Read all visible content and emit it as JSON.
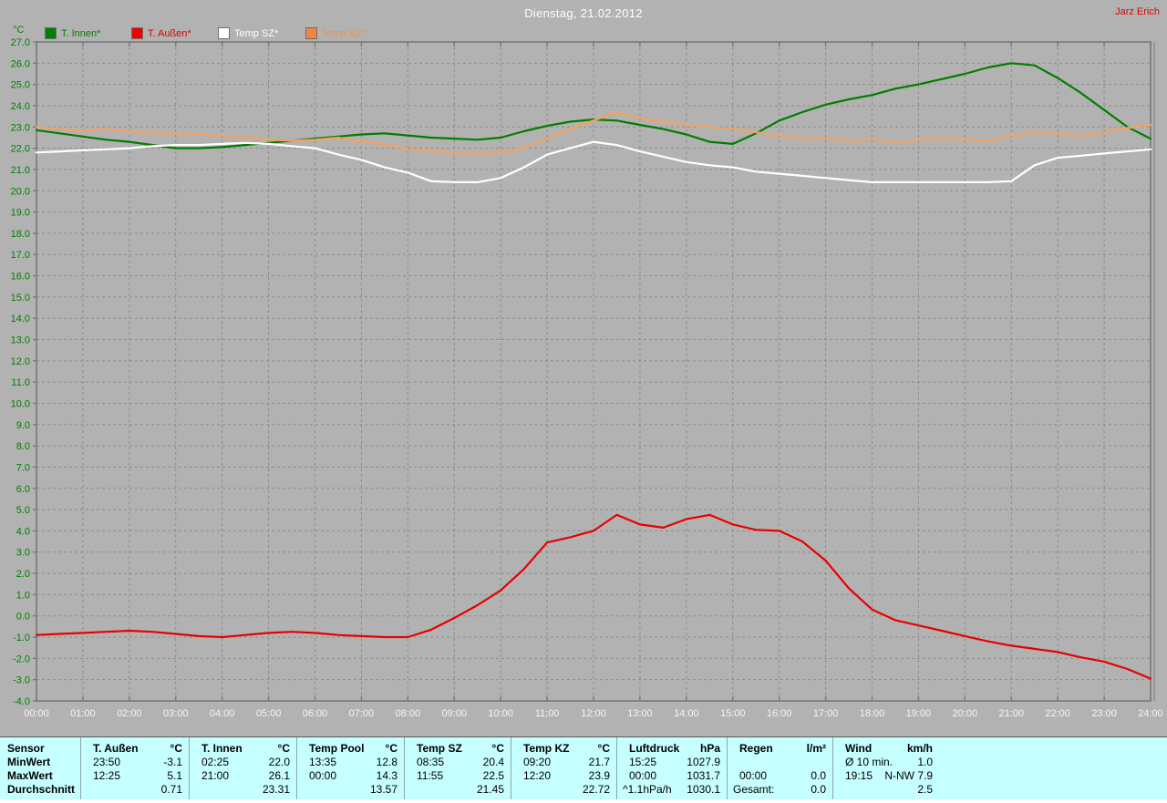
{
  "header": {
    "title": "Dienstag, 21.02.2012",
    "author": "Jarz Erich"
  },
  "chart": {
    "unit_label": "°C",
    "legend": [
      {
        "label": "T. Innen*",
        "color": "#008000",
        "text_color": "#008000"
      },
      {
        "label": "T. Außen*",
        "color": "#f00000",
        "text_color": "#e00000"
      },
      {
        "label": "Temp SZ*",
        "color": "#ffffff",
        "text_color": "#ffffff"
      },
      {
        "label": "Temp KZ*",
        "color": "#f08442",
        "text_color": "#f09050"
      }
    ],
    "colors": {
      "background": "#b2b2b2",
      "grid": "#8d8d8d",
      "frame": "#787878",
      "y_label": "#008000",
      "x_label": "#f5f5f5"
    }
  },
  "chart_data": {
    "type": "line",
    "title": "Dienstag, 21.02.2012",
    "xlabel": "",
    "ylabel": "°C",
    "ylim": [
      -4,
      27
    ],
    "y_tick_step": 1,
    "grid": true,
    "legend_position": "top-left",
    "x_ticks": [
      "00:00",
      "01:00",
      "02:00",
      "03:00",
      "04:00",
      "05:00",
      "06:00",
      "07:00",
      "08:00",
      "09:00",
      "10:00",
      "11:00",
      "12:00",
      "13:00",
      "14:00",
      "15:00",
      "16:00",
      "17:00",
      "18:00",
      "19:00",
      "20:00",
      "21:00",
      "22:00",
      "23:00",
      "24:00"
    ],
    "x_step_hours": 0.5,
    "series": [
      {
        "name": "T. Innen*",
        "color": "#007d00",
        "values": [
          22.85,
          22.7,
          22.55,
          22.4,
          22.3,
          22.15,
          22.0,
          22.0,
          22.05,
          22.15,
          22.25,
          22.35,
          22.45,
          22.55,
          22.65,
          22.7,
          22.6,
          22.5,
          22.45,
          22.4,
          22.5,
          22.8,
          23.05,
          23.25,
          23.35,
          23.3,
          23.1,
          22.9,
          22.65,
          22.3,
          22.2,
          22.7,
          23.3,
          23.7,
          24.05,
          24.3,
          24.5,
          24.8,
          25.0,
          25.25,
          25.5,
          25.8,
          26.0,
          25.9,
          25.3,
          24.6,
          23.8,
          23.0,
          22.45
        ]
      },
      {
        "name": "T. Außen*",
        "color": "#e80000",
        "values": [
          -0.9,
          -0.85,
          -0.8,
          -0.75,
          -0.7,
          -0.75,
          -0.85,
          -0.95,
          -1.0,
          -0.9,
          -0.8,
          -0.75,
          -0.8,
          -0.9,
          -0.95,
          -1.0,
          -1.0,
          -0.65,
          -0.1,
          0.5,
          1.2,
          2.2,
          3.45,
          3.7,
          4.0,
          4.75,
          4.3,
          4.15,
          4.55,
          4.75,
          4.3,
          4.05,
          4.0,
          3.5,
          2.6,
          1.3,
          0.3,
          -0.2,
          -0.45,
          -0.7,
          -0.95,
          -1.2,
          -1.4,
          -1.55,
          -1.7,
          -1.95,
          -2.15,
          -2.5,
          -2.95
        ]
      },
      {
        "name": "Temp SZ*",
        "color": "#ffffff",
        "values": [
          21.8,
          21.85,
          21.9,
          21.95,
          22.0,
          22.1,
          22.15,
          22.15,
          22.2,
          22.25,
          22.2,
          22.1,
          22.0,
          21.7,
          21.45,
          21.1,
          20.85,
          20.45,
          20.4,
          20.4,
          20.6,
          21.1,
          21.7,
          22.0,
          22.3,
          22.15,
          21.85,
          21.6,
          21.35,
          21.2,
          21.1,
          20.9,
          20.8,
          20.7,
          20.6,
          20.5,
          20.4,
          20.4,
          20.4,
          20.4,
          20.4,
          20.4,
          20.45,
          21.2,
          21.55,
          21.65,
          21.75,
          21.85,
          21.95
        ]
      },
      {
        "name": "Temp KZ*",
        "color": "#f2a263",
        "values": [
          23.0,
          22.9,
          22.8,
          22.9,
          22.8,
          22.7,
          22.7,
          22.65,
          22.6,
          22.5,
          22.4,
          22.35,
          22.4,
          22.5,
          22.3,
          22.2,
          21.95,
          21.9,
          21.8,
          21.75,
          21.8,
          22.0,
          22.45,
          22.9,
          23.3,
          23.7,
          23.4,
          23.25,
          23.1,
          23.0,
          22.9,
          22.75,
          22.6,
          22.5,
          22.45,
          22.35,
          22.45,
          22.25,
          22.4,
          22.5,
          22.4,
          22.35,
          22.6,
          22.75,
          22.7,
          22.55,
          22.75,
          22.95,
          23.1
        ]
      }
    ]
  },
  "stats_table": {
    "sensor_header": "Sensor",
    "row_labels": [
      "MinWert",
      "MaxWert",
      "Durchschnitt"
    ],
    "columns": [
      {
        "name": "T. Außen",
        "unit": "°C",
        "min_time": "23:50",
        "min": "-3.1",
        "max_time": "12:25",
        "max": "5.1",
        "avg_label": "",
        "avg": "0.71"
      },
      {
        "name": "T. Innen",
        "unit": "°C",
        "min_time": "02:25",
        "min": "22.0",
        "max_time": "21:00",
        "max": "26.1",
        "avg_label": "",
        "avg": "23.31"
      },
      {
        "name": "Temp Pool",
        "unit": "°C",
        "min_time": "13:35",
        "min": "12.8",
        "max_time": "00:00",
        "max": "14.3",
        "avg_label": "",
        "avg": "13.57"
      },
      {
        "name": "Temp SZ",
        "unit": "°C",
        "min_time": "08:35",
        "min": "20.4",
        "max_time": "11:55",
        "max": "22.5",
        "avg_label": "",
        "avg": "21.45"
      },
      {
        "name": "Temp KZ",
        "unit": "°C",
        "min_time": "09:20",
        "min": "21.7",
        "max_time": "12:20",
        "max": "23.9",
        "avg_label": "",
        "avg": "22.72"
      },
      {
        "name": "Luftdruck",
        "unit": "hPa",
        "min_time": "15:25",
        "min": "1027.9",
        "max_time": "00:00",
        "max": "1031.7",
        "avg_label": "^1.1hPa/h",
        "avg": "1030.1"
      },
      {
        "name": "Regen",
        "unit": "l/m²",
        "min_time": "",
        "min": "",
        "max_time": "00:00",
        "max": "0.0",
        "avg_label": "Gesamt:",
        "avg": "0.0"
      },
      {
        "name": "Wind",
        "unit": "km/h",
        "min_time": "Ø 10 min.",
        "min": "1.0",
        "max_time": "19:15",
        "max": "N-NW 7.9",
        "avg_label": "",
        "avg": "2.5"
      }
    ]
  }
}
